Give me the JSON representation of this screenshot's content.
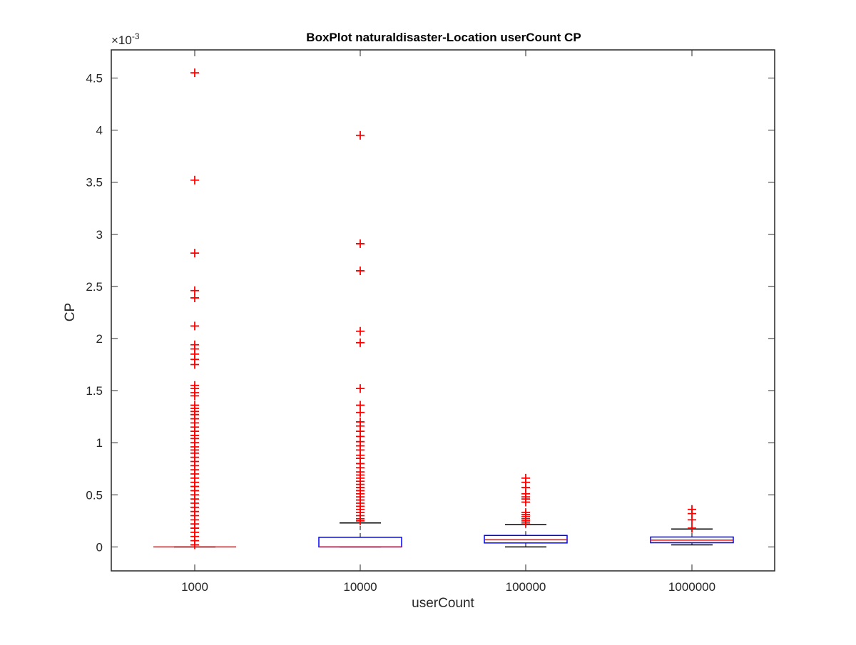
{
  "chart_data": {
    "type": "boxplot",
    "title": "BoxPlot naturaldisaster-Location userCount CP",
    "xlabel": "userCount",
    "ylabel": "CP",
    "y_exponent_label": "×10",
    "y_exponent": "-3",
    "ylim": [
      -0.00023,
      0.00477
    ],
    "grid": false,
    "y_ticks": [
      0,
      0.0005,
      0.001,
      0.0015,
      0.002,
      0.0025,
      0.003,
      0.0035,
      0.004,
      0.0045
    ],
    "y_tick_labels": [
      "0",
      "0.5",
      "1",
      "1.5",
      "2",
      "2.5",
      "3",
      "3.5",
      "4",
      "4.5"
    ],
    "categories": [
      "1000",
      "10000",
      "100000",
      "1000000"
    ],
    "colors": {
      "box": "#0000ff",
      "median": "#ff0000",
      "whisker": "#000000",
      "outlier": "#ff0000",
      "axis": "#262626"
    },
    "boxes": [
      {
        "category": "1000",
        "q1": 0,
        "median": 0,
        "q3": 0,
        "whisker_low": 0,
        "whisker_high": 0,
        "outliers": [
          0.00455,
          0.00352,
          0.00282,
          0.00246,
          0.00239,
          0.00212,
          0.00194,
          0.0019,
          0.00185,
          0.0018,
          0.00175,
          0.00155,
          0.00152,
          0.00148,
          0.00145,
          0.00136,
          0.00133,
          0.0013,
          0.00127,
          0.00123,
          0.00119,
          0.00115,
          0.00111,
          0.00107,
          0.00104,
          0.001,
          0.00096,
          0.00093,
          0.0009,
          0.00086,
          0.00082,
          0.00078,
          0.00074,
          0.0007,
          0.00066,
          0.00062,
          0.00058,
          0.00054,
          0.0005,
          0.00046,
          0.00042,
          0.00038,
          0.00034,
          0.0003,
          0.00026,
          0.00022,
          0.00018,
          0.00014,
          0.0001,
          6e-05,
          2e-05
        ]
      },
      {
        "category": "10000",
        "q1": 0,
        "median": 0,
        "q3": 9.2e-05,
        "whisker_low": 0,
        "whisker_high": 0.00023,
        "outliers": [
          0.00395,
          0.00291,
          0.00265,
          0.00207,
          0.00196,
          0.00152,
          0.00136,
          0.00129,
          0.0012,
          0.00116,
          0.00111,
          0.00106,
          0.00101,
          0.00097,
          0.00093,
          0.00088,
          0.00085,
          0.0008,
          0.00076,
          0.00072,
          0.00069,
          0.00066,
          0.00063,
          0.0006,
          0.00057,
          0.00054,
          0.00051,
          0.00048,
          0.00045,
          0.00042,
          0.00039,
          0.00036,
          0.00033,
          0.0003,
          0.00027,
          0.00025
        ]
      },
      {
        "category": "100000",
        "q1": 3.8e-05,
        "median": 6.8e-05,
        "q3": 0.00011,
        "whisker_low": 0,
        "whisker_high": 0.000215,
        "outliers": [
          0.00066,
          0.00062,
          0.00057,
          0.00051,
          0.00048,
          0.00046,
          0.00043,
          0.00033,
          0.00031,
          0.00029,
          0.00027,
          0.00025,
          0.00023
        ]
      },
      {
        "category": "1000000",
        "q1": 4e-05,
        "median": 6.5e-05,
        "q3": 9.5e-05,
        "whisker_low": 2e-05,
        "whisker_high": 0.000172,
        "outliers": [
          0.00036,
          0.00032,
          0.00026,
          0.00018
        ]
      }
    ]
  }
}
